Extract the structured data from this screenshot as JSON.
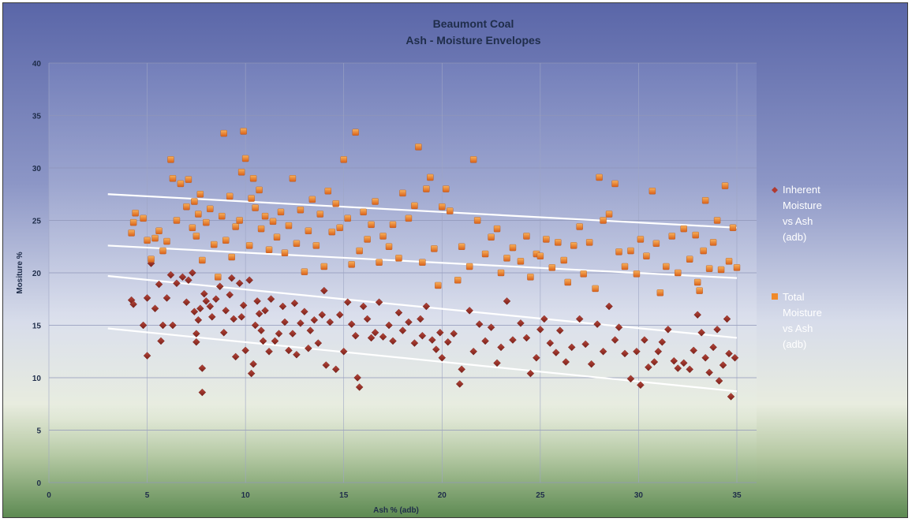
{
  "chart_data": {
    "type": "scatter",
    "title": [
      "Beaumont Coal",
      "Ash -  Moisture Envelopes"
    ],
    "xlabel": "Ash % (adb)",
    "ylabel": "Mositure %",
    "xlim": [
      0,
      35
    ],
    "ylim": [
      0,
      40
    ],
    "xticks": [
      "0",
      "5",
      "10",
      "15",
      "20",
      "25",
      "30",
      "35"
    ],
    "yticks": [
      "0",
      "5",
      "10",
      "15",
      "20",
      "25",
      "30",
      "35",
      "40"
    ],
    "grid": true,
    "legend_position": "right",
    "series": [
      {
        "name": "Inherent Moisture vs Ash (adb)",
        "color": "#8b2a22",
        "marker": "diamond",
        "points": [
          [
            4.2,
            17.4
          ],
          [
            4.3,
            17.0
          ],
          [
            4.8,
            15.0
          ],
          [
            5.0,
            17.6
          ],
          [
            5.0,
            12.1
          ],
          [
            5.2,
            20.9
          ],
          [
            5.4,
            16.6
          ],
          [
            5.6,
            18.9
          ],
          [
            5.7,
            13.5
          ],
          [
            5.8,
            15.0
          ],
          [
            6.0,
            17.6
          ],
          [
            6.2,
            19.8
          ],
          [
            6.3,
            15.0
          ],
          [
            6.5,
            19.0
          ],
          [
            6.8,
            19.6
          ],
          [
            7.0,
            17.2
          ],
          [
            7.1,
            19.3
          ],
          [
            7.3,
            20.0
          ],
          [
            7.4,
            16.3
          ],
          [
            7.5,
            14.2
          ],
          [
            7.5,
            13.4
          ],
          [
            7.6,
            15.5
          ],
          [
            7.7,
            16.6
          ],
          [
            7.8,
            10.9
          ],
          [
            7.8,
            8.6
          ],
          [
            7.9,
            18.0
          ],
          [
            8.0,
            17.3
          ],
          [
            8.2,
            16.8
          ],
          [
            8.3,
            15.8
          ],
          [
            8.5,
            17.5
          ],
          [
            8.7,
            18.7
          ],
          [
            8.9,
            14.3
          ],
          [
            9.0,
            16.4
          ],
          [
            9.2,
            17.9
          ],
          [
            9.3,
            19.5
          ],
          [
            9.4,
            15.6
          ],
          [
            9.5,
            12.0
          ],
          [
            9.7,
            19.0
          ],
          [
            9.8,
            15.8
          ],
          [
            9.9,
            16.9
          ],
          [
            10.0,
            12.6
          ],
          [
            10.2,
            19.3
          ],
          [
            10.3,
            10.4
          ],
          [
            10.4,
            11.3
          ],
          [
            10.5,
            15.0
          ],
          [
            10.6,
            17.3
          ],
          [
            10.7,
            16.1
          ],
          [
            10.8,
            14.5
          ],
          [
            10.9,
            13.5
          ],
          [
            11.0,
            16.4
          ],
          [
            11.2,
            12.5
          ],
          [
            11.3,
            17.5
          ],
          [
            11.5,
            13.5
          ],
          [
            11.7,
            14.2
          ],
          [
            11.9,
            16.8
          ],
          [
            12.0,
            15.3
          ],
          [
            12.2,
            12.6
          ],
          [
            12.4,
            14.2
          ],
          [
            12.5,
            17.1
          ],
          [
            12.6,
            12.2
          ],
          [
            12.8,
            15.2
          ],
          [
            13.0,
            16.3
          ],
          [
            13.2,
            12.8
          ],
          [
            13.3,
            14.5
          ],
          [
            13.5,
            15.5
          ],
          [
            13.7,
            13.3
          ],
          [
            13.9,
            16.0
          ],
          [
            14.0,
            18.3
          ],
          [
            14.1,
            11.2
          ],
          [
            14.3,
            15.3
          ],
          [
            14.6,
            10.8
          ],
          [
            14.8,
            16.0
          ],
          [
            15.0,
            12.5
          ],
          [
            15.2,
            17.2
          ],
          [
            15.4,
            15.1
          ],
          [
            15.6,
            14.0
          ],
          [
            15.7,
            10.0
          ],
          [
            15.8,
            9.1
          ],
          [
            16.0,
            16.8
          ],
          [
            16.2,
            15.6
          ],
          [
            16.4,
            13.8
          ],
          [
            16.6,
            14.3
          ],
          [
            16.8,
            17.2
          ],
          [
            17.0,
            13.9
          ],
          [
            17.3,
            15.0
          ],
          [
            17.5,
            13.5
          ],
          [
            17.8,
            16.2
          ],
          [
            18.0,
            14.5
          ],
          [
            18.3,
            15.3
          ],
          [
            18.6,
            13.3
          ],
          [
            18.9,
            15.6
          ],
          [
            19.0,
            14.0
          ],
          [
            19.2,
            16.8
          ],
          [
            19.5,
            13.6
          ],
          [
            19.7,
            12.7
          ],
          [
            19.9,
            14.3
          ],
          [
            20.0,
            11.9
          ],
          [
            20.3,
            13.4
          ],
          [
            20.6,
            14.2
          ],
          [
            20.9,
            9.4
          ],
          [
            21.0,
            10.8
          ],
          [
            21.4,
            16.4
          ],
          [
            21.6,
            12.5
          ],
          [
            21.9,
            15.1
          ],
          [
            22.2,
            13.5
          ],
          [
            22.5,
            14.8
          ],
          [
            22.8,
            11.4
          ],
          [
            23.0,
            12.9
          ],
          [
            23.3,
            17.3
          ],
          [
            23.6,
            13.6
          ],
          [
            24.0,
            15.2
          ],
          [
            24.3,
            13.8
          ],
          [
            24.5,
            10.4
          ],
          [
            24.8,
            11.9
          ],
          [
            25.0,
            14.6
          ],
          [
            25.2,
            15.6
          ],
          [
            25.5,
            13.3
          ],
          [
            25.8,
            12.4
          ],
          [
            26.0,
            14.5
          ],
          [
            26.3,
            11.5
          ],
          [
            26.6,
            12.9
          ],
          [
            27.0,
            15.6
          ],
          [
            27.3,
            13.2
          ],
          [
            27.6,
            11.3
          ],
          [
            27.9,
            15.1
          ],
          [
            28.2,
            12.5
          ],
          [
            28.5,
            16.8
          ],
          [
            28.8,
            13.6
          ],
          [
            29.0,
            14.8
          ],
          [
            29.3,
            12.3
          ],
          [
            29.6,
            9.9
          ],
          [
            29.9,
            12.5
          ],
          [
            30.1,
            9.3
          ],
          [
            30.3,
            13.6
          ],
          [
            30.5,
            11.0
          ],
          [
            30.8,
            11.5
          ],
          [
            31.0,
            12.5
          ],
          [
            31.2,
            13.4
          ],
          [
            31.5,
            14.6
          ],
          [
            31.8,
            11.6
          ],
          [
            32.0,
            10.9
          ],
          [
            32.3,
            11.4
          ],
          [
            32.6,
            10.8
          ],
          [
            32.8,
            12.6
          ],
          [
            33.0,
            16.0
          ],
          [
            33.2,
            14.3
          ],
          [
            33.4,
            11.9
          ],
          [
            33.6,
            10.5
          ],
          [
            33.8,
            12.9
          ],
          [
            34.0,
            14.6
          ],
          [
            34.1,
            9.7
          ],
          [
            34.3,
            11.2
          ],
          [
            34.5,
            15.6
          ],
          [
            34.6,
            12.3
          ],
          [
            34.7,
            8.2
          ],
          [
            34.9,
            11.9
          ]
        ]
      },
      {
        "name": "Total Moisture vs Ash (adb)",
        "color": "#e8731f",
        "marker": "square",
        "points": [
          [
            4.2,
            23.8
          ],
          [
            4.3,
            24.8
          ],
          [
            4.4,
            25.7
          ],
          [
            4.8,
            25.2
          ],
          [
            5.0,
            23.1
          ],
          [
            5.2,
            21.3
          ],
          [
            5.4,
            23.3
          ],
          [
            5.6,
            24.0
          ],
          [
            5.8,
            22.1
          ],
          [
            6.0,
            23.0
          ],
          [
            6.2,
            30.8
          ],
          [
            6.3,
            29.0
          ],
          [
            6.5,
            25.0
          ],
          [
            6.7,
            28.5
          ],
          [
            7.0,
            26.3
          ],
          [
            7.1,
            28.9
          ],
          [
            7.3,
            24.3
          ],
          [
            7.4,
            26.8
          ],
          [
            7.5,
            23.5
          ],
          [
            7.6,
            25.6
          ],
          [
            7.7,
            27.5
          ],
          [
            7.8,
            21.2
          ],
          [
            8.0,
            24.8
          ],
          [
            8.2,
            26.1
          ],
          [
            8.4,
            22.7
          ],
          [
            8.6,
            19.6
          ],
          [
            8.8,
            25.4
          ],
          [
            8.9,
            33.3
          ],
          [
            9.0,
            23.1
          ],
          [
            9.2,
            27.3
          ],
          [
            9.3,
            21.5
          ],
          [
            9.5,
            24.4
          ],
          [
            9.7,
            25.0
          ],
          [
            9.8,
            29.6
          ],
          [
            9.9,
            33.5
          ],
          [
            10.0,
            30.9
          ],
          [
            10.2,
            22.6
          ],
          [
            10.3,
            27.1
          ],
          [
            10.4,
            29.0
          ],
          [
            10.5,
            26.2
          ],
          [
            10.7,
            27.9
          ],
          [
            10.8,
            24.2
          ],
          [
            11.0,
            25.4
          ],
          [
            11.2,
            22.2
          ],
          [
            11.4,
            24.9
          ],
          [
            11.6,
            23.4
          ],
          [
            11.8,
            25.8
          ],
          [
            12.0,
            21.9
          ],
          [
            12.2,
            24.5
          ],
          [
            12.4,
            29.0
          ],
          [
            12.6,
            22.8
          ],
          [
            12.8,
            26.0
          ],
          [
            13.0,
            20.1
          ],
          [
            13.2,
            24.0
          ],
          [
            13.4,
            27.0
          ],
          [
            13.6,
            22.6
          ],
          [
            13.8,
            25.6
          ],
          [
            14.0,
            20.6
          ],
          [
            14.2,
            27.8
          ],
          [
            14.4,
            23.9
          ],
          [
            14.6,
            26.6
          ],
          [
            14.8,
            24.3
          ],
          [
            15.0,
            30.8
          ],
          [
            15.2,
            25.2
          ],
          [
            15.4,
            20.8
          ],
          [
            15.6,
            33.4
          ],
          [
            15.8,
            22.1
          ],
          [
            16.0,
            25.8
          ],
          [
            16.2,
            23.2
          ],
          [
            16.4,
            24.6
          ],
          [
            16.6,
            26.8
          ],
          [
            16.8,
            21.0
          ],
          [
            17.0,
            23.5
          ],
          [
            17.3,
            22.5
          ],
          [
            17.5,
            24.6
          ],
          [
            17.8,
            21.4
          ],
          [
            18.0,
            27.6
          ],
          [
            18.3,
            25.2
          ],
          [
            18.6,
            26.4
          ],
          [
            18.8,
            32.0
          ],
          [
            19.0,
            21.0
          ],
          [
            19.2,
            28.0
          ],
          [
            19.4,
            29.1
          ],
          [
            19.6,
            22.3
          ],
          [
            19.8,
            18.8
          ],
          [
            20.0,
            26.3
          ],
          [
            20.2,
            28.0
          ],
          [
            20.4,
            25.9
          ],
          [
            20.8,
            19.3
          ],
          [
            21.0,
            22.5
          ],
          [
            21.4,
            20.6
          ],
          [
            21.6,
            30.8
          ],
          [
            21.8,
            25.0
          ],
          [
            22.2,
            21.8
          ],
          [
            22.5,
            23.4
          ],
          [
            22.8,
            24.2
          ],
          [
            23.0,
            20.0
          ],
          [
            23.3,
            21.4
          ],
          [
            23.6,
            22.4
          ],
          [
            24.0,
            21.1
          ],
          [
            24.3,
            23.5
          ],
          [
            24.5,
            19.6
          ],
          [
            24.8,
            21.8
          ],
          [
            25.0,
            21.6
          ],
          [
            25.3,
            23.2
          ],
          [
            25.6,
            20.5
          ],
          [
            25.9,
            22.9
          ],
          [
            26.2,
            21.2
          ],
          [
            26.4,
            19.1
          ],
          [
            26.7,
            22.6
          ],
          [
            27.0,
            24.4
          ],
          [
            27.2,
            19.9
          ],
          [
            27.5,
            22.9
          ],
          [
            27.8,
            18.5
          ],
          [
            28.0,
            29.1
          ],
          [
            28.2,
            25.0
          ],
          [
            28.5,
            25.6
          ],
          [
            28.8,
            28.5
          ],
          [
            29.0,
            22.0
          ],
          [
            29.3,
            20.6
          ],
          [
            29.6,
            22.1
          ],
          [
            29.9,
            19.9
          ],
          [
            30.1,
            23.2
          ],
          [
            30.4,
            21.6
          ],
          [
            30.7,
            27.8
          ],
          [
            30.9,
            22.8
          ],
          [
            31.1,
            18.1
          ],
          [
            31.4,
            20.6
          ],
          [
            31.7,
            23.5
          ],
          [
            32.0,
            20.0
          ],
          [
            32.3,
            24.2
          ],
          [
            32.6,
            21.3
          ],
          [
            32.9,
            23.6
          ],
          [
            33.0,
            19.1
          ],
          [
            33.1,
            18.3
          ],
          [
            33.3,
            22.1
          ],
          [
            33.4,
            26.9
          ],
          [
            33.6,
            20.4
          ],
          [
            33.8,
            22.9
          ],
          [
            34.0,
            25.0
          ],
          [
            34.2,
            20.3
          ],
          [
            34.4,
            28.3
          ],
          [
            34.6,
            21.1
          ],
          [
            34.8,
            24.3
          ],
          [
            35.0,
            20.5
          ]
        ]
      }
    ],
    "envelope_lines": [
      {
        "from": [
          3,
          27.5
        ],
        "to": [
          35,
          24.3
        ]
      },
      {
        "from": [
          3,
          22.6
        ],
        "to": [
          35,
          19.5
        ]
      },
      {
        "from": [
          3,
          19.7
        ],
        "to": [
          35,
          13.8
        ]
      },
      {
        "from": [
          3,
          14.7
        ],
        "to": [
          35,
          8.7
        ]
      }
    ]
  }
}
